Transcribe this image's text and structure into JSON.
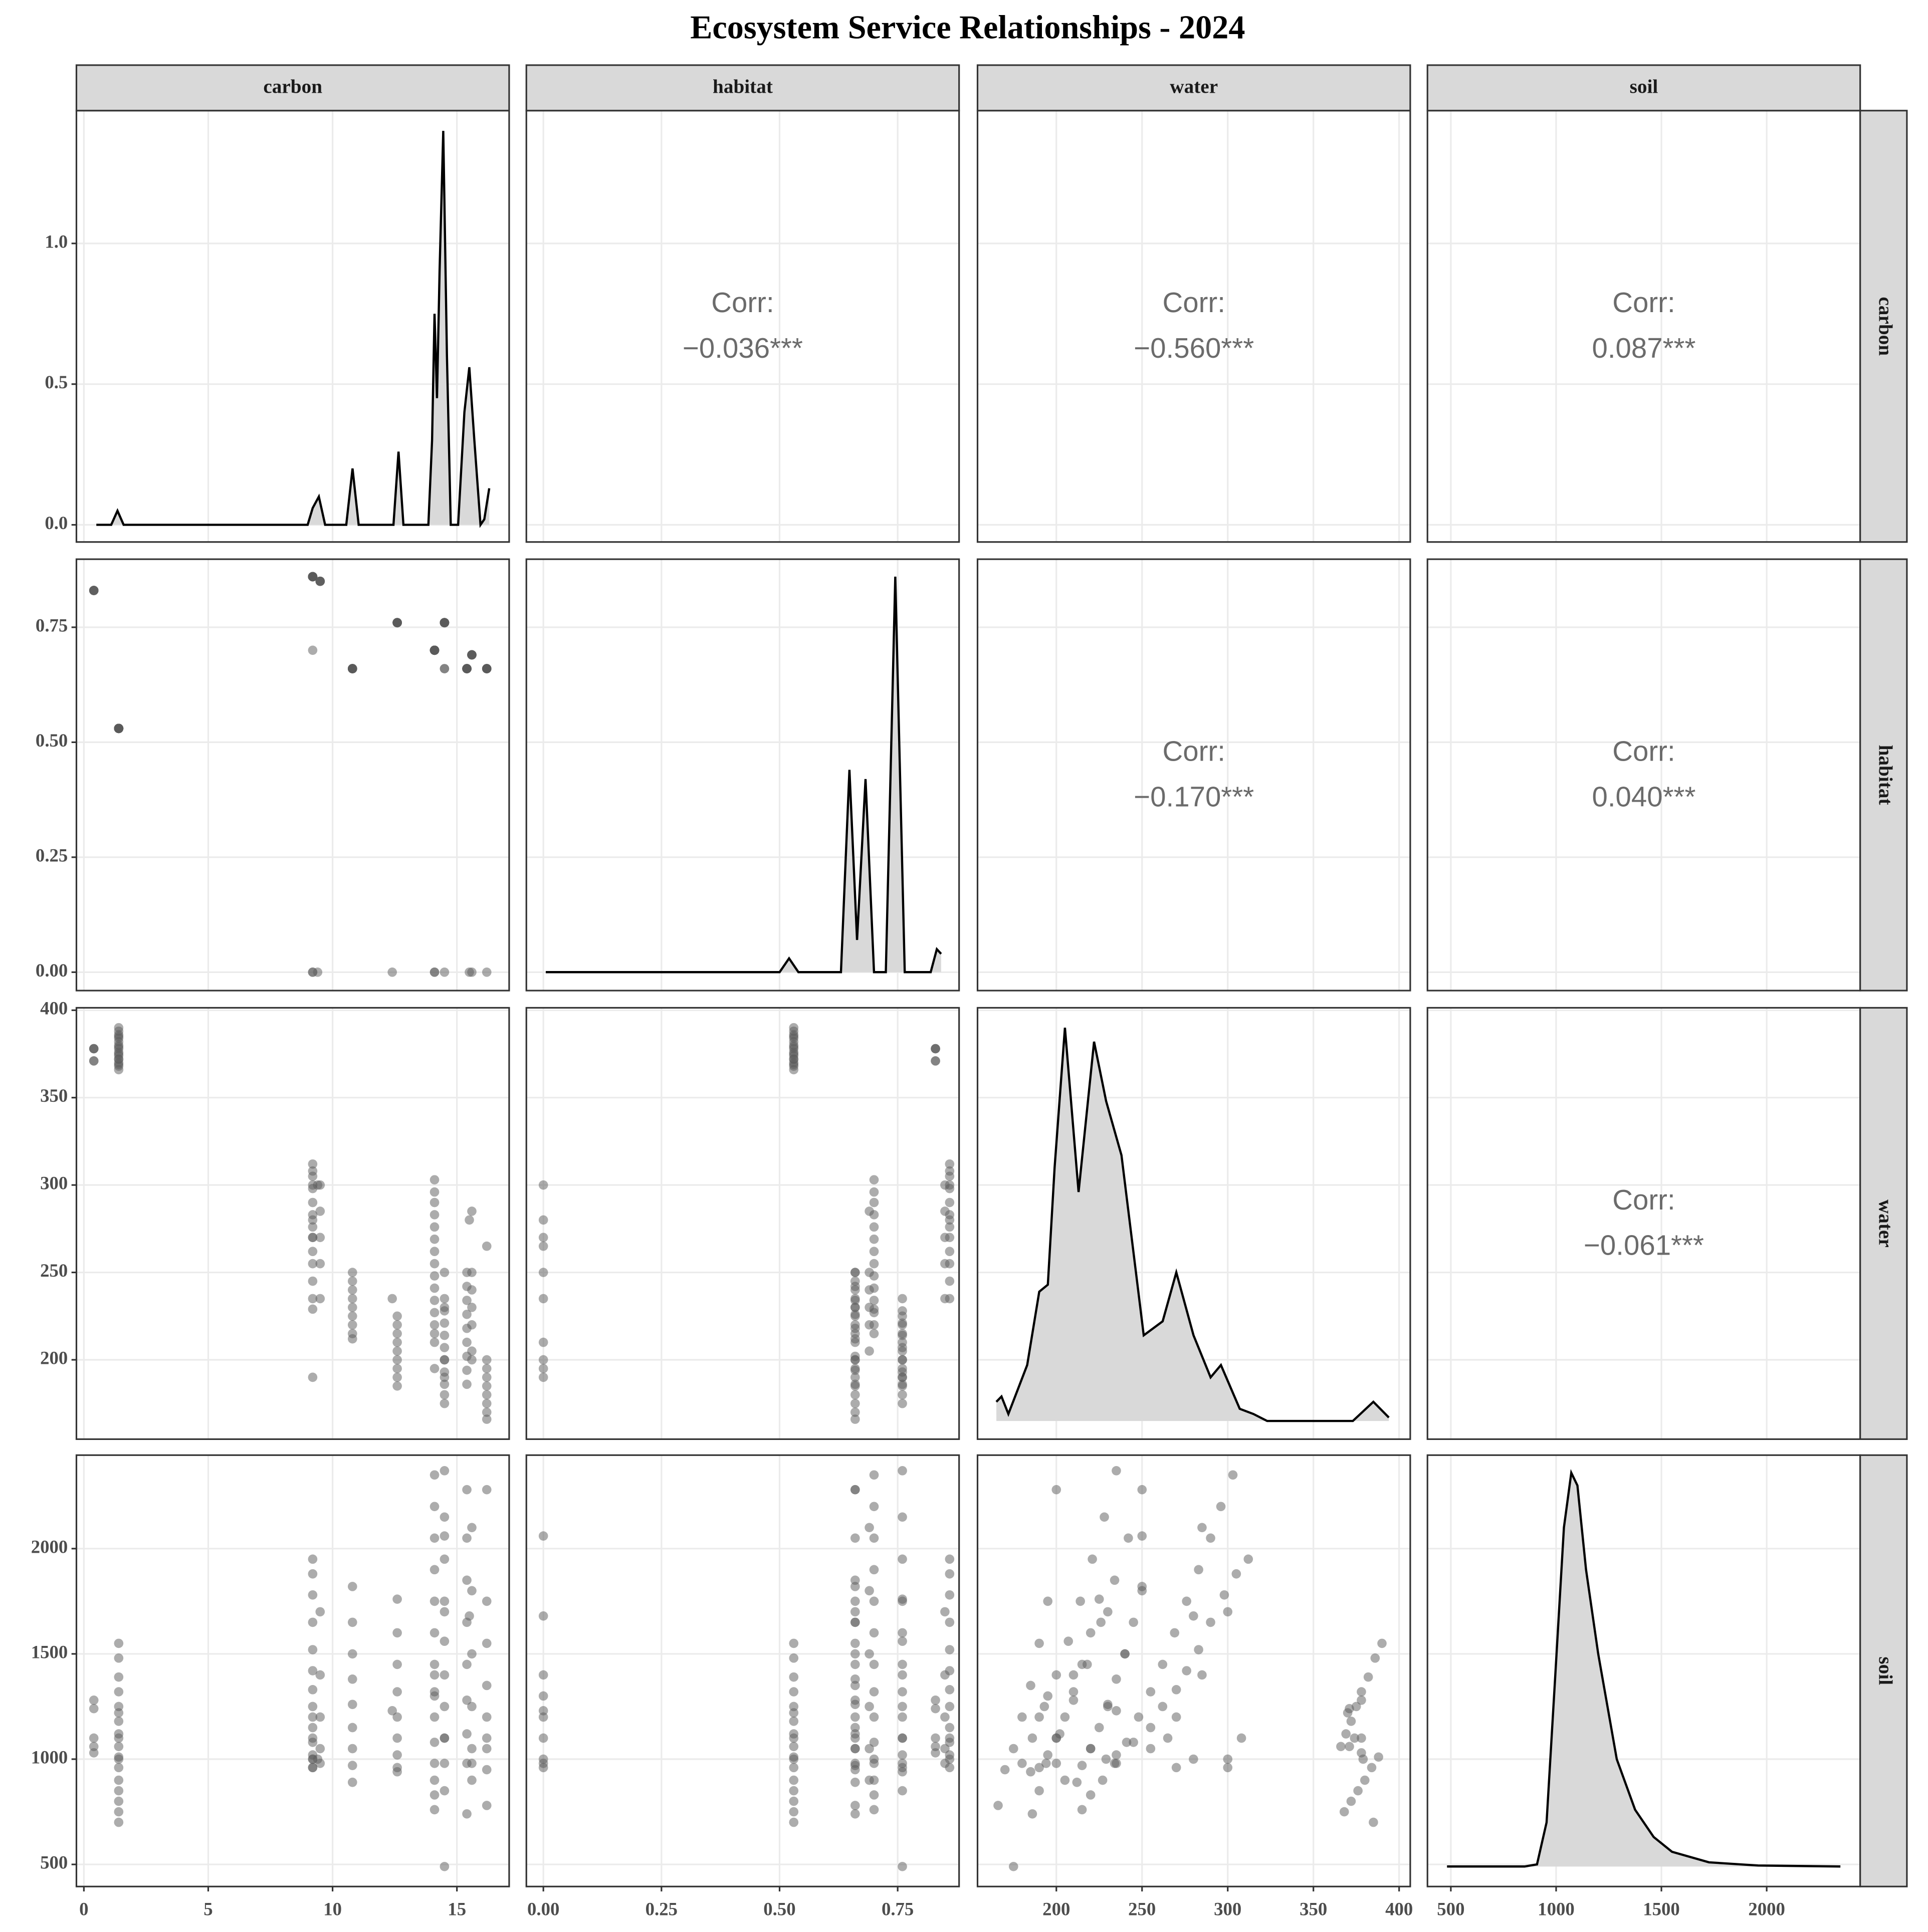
{
  "chart_data": {
    "type": "pairs",
    "title": "Ecosystem Service Relationships - 2024",
    "grid": true,
    "point_color": "#595959",
    "density_fill": "#d9d9d9",
    "line_color": "#000000",
    "variables": [
      {
        "name": "carbon",
        "xlim": [
          -0.3,
          17.1
        ],
        "xticks": [
          0,
          5,
          10,
          15
        ],
        "ylim": [
          -0.061,
          1.472
        ],
        "yticks": [
          {
            "value": 0,
            "label": "0.0"
          },
          0.5,
          {
            "value": 1,
            "label": "1.0"
          }
        ],
        "density": {
          "x": [
            0.5,
            1.1,
            1.35,
            1.6,
            9.0,
            9.2,
            9.45,
            9.7,
            10.55,
            10.8,
            11.05,
            12.45,
            12.65,
            12.85,
            13.85,
            14.0,
            14.1,
            14.2,
            14.3,
            14.45,
            14.6,
            14.75,
            15.05,
            15.3,
            15.5,
            15.7,
            15.95,
            16.1,
            16.3
          ],
          "y": [
            0,
            0,
            0.05,
            0,
            0,
            0.06,
            0.1,
            0,
            0,
            0.2,
            0,
            0,
            0.26,
            0,
            0,
            0.3,
            0.75,
            0.45,
            0.9,
            1.4,
            0.6,
            0,
            0,
            0.4,
            0.56,
            0.3,
            0,
            0.02,
            0.13
          ]
        }
      },
      {
        "name": "habitat",
        "xlim": [
          -0.036,
          0.88
        ],
        "xticks": [
          {
            "value": 0,
            "label": "0.00"
          },
          {
            "value": 0.25,
            "label": "0.25"
          },
          {
            "value": 0.5,
            "label": "0.50"
          },
          {
            "value": 0.75,
            "label": "0.75"
          }
        ],
        "ylim": [
          -0.04,
          0.898
        ],
        "yticks": [
          {
            "value": 0,
            "label": "0.00"
          },
          {
            "value": 0.25,
            "label": "0.25"
          },
          {
            "value": 0.5,
            "label": "0.50"
          },
          {
            "value": 0.75,
            "label": "0.75"
          }
        ],
        "density": {
          "x": [
            0.005,
            0.5,
            0.52,
            0.54,
            0.63,
            0.648,
            0.664,
            0.682,
            0.7,
            0.725,
            0.745,
            0.765,
            0.82,
            0.833,
            0.842
          ],
          "y": [
            0,
            0,
            0.03,
            0,
            0,
            0.44,
            0.07,
            0.42,
            0,
            0,
            0.86,
            0,
            0,
            0.05,
            0.04
          ]
        }
      },
      {
        "name": "water",
        "xlim": [
          154,
          406.5
        ],
        "xticks": [
          200,
          250,
          300,
          350,
          400
        ],
        "ylim": [
          154.6,
          401.4
        ],
        "yticks": [
          200,
          250,
          300,
          350,
          400
        ],
        "density": {
          "x": [
            165,
            168,
            172,
            183,
            190,
            195,
            199,
            205,
            213,
            222,
            229,
            238,
            251,
            262,
            270,
            280,
            290,
            296,
            307,
            315,
            323,
            373,
            385,
            394
          ],
          "y": [
            176,
            179,
            169,
            197,
            239,
            243,
            310,
            390,
            296,
            382,
            348,
            317,
            214,
            222,
            250,
            214,
            190,
            197,
            172,
            169,
            165,
            165,
            176,
            167
          ]
        }
      },
      {
        "name": "soil",
        "xlim": [
          389,
          2444
        ],
        "xticks": [
          500,
          1000,
          1500,
          2000
        ],
        "ylim": [
          395,
          2444
        ],
        "yticks": [
          500,
          1000,
          1500,
          2000
        ],
        "density": {
          "x": [
            482,
            850,
            909,
            955,
            996,
            1037,
            1072,
            1101,
            1142,
            1200,
            1288,
            1375,
            1463,
            1550,
            1726,
            1959,
            2350
          ],
          "y": [
            490,
            490,
            500,
            700,
            1400,
            2100,
            2360,
            2300,
            1900,
            1500,
            1000,
            760,
            630,
            560,
            510,
            495,
            490
          ]
        }
      }
    ],
    "correlations": [
      {
        "x": "habitat",
        "y": "carbon",
        "label": "Corr:",
        "value": -0.036,
        "value_label": "−0.036***"
      },
      {
        "x": "water",
        "y": "carbon",
        "label": "Corr:",
        "value": -0.56,
        "value_label": "−0.560***"
      },
      {
        "x": "soil",
        "y": "carbon",
        "label": "Corr:",
        "value": 0.087,
        "value_label": "0.087***"
      },
      {
        "x": "water",
        "y": "habitat",
        "label": "Corr:",
        "value": -0.17,
        "value_label": "−0.170***"
      },
      {
        "x": "soil",
        "y": "habitat",
        "label": "Corr:",
        "value": 0.04,
        "value_label": "0.040***"
      },
      {
        "x": "soil",
        "y": "water",
        "label": "Corr:",
        "value": -0.061,
        "value_label": "−0.061***"
      }
    ],
    "observations": [
      [
        0.4,
        0.83,
        378,
        1280
      ],
      [
        0.4,
        0.83,
        371,
        1240
      ],
      [
        0.4,
        0.83,
        378,
        1100
      ],
      [
        0.4,
        0.83,
        371,
        1060
      ],
      [
        0.4,
        0.83,
        378,
        1030
      ],
      [
        1.4,
        0.53,
        390,
        1550
      ],
      [
        1.4,
        0.53,
        386,
        1480
      ],
      [
        1.4,
        0.53,
        382,
        1390
      ],
      [
        1.4,
        0.53,
        378,
        1320
      ],
      [
        1.4,
        0.53,
        375,
        1250
      ],
      [
        1.4,
        0.53,
        372,
        1180
      ],
      [
        1.4,
        0.53,
        369,
        1120
      ],
      [
        1.4,
        0.53,
        366,
        1060
      ],
      [
        1.4,
        0.53,
        388,
        1010
      ],
      [
        1.4,
        0.53,
        384,
        960
      ],
      [
        1.4,
        0.53,
        380,
        900
      ],
      [
        1.4,
        0.53,
        376,
        850
      ],
      [
        1.4,
        0.53,
        372,
        800
      ],
      [
        1.4,
        0.53,
        368,
        750
      ],
      [
        1.4,
        0.53,
        385,
        700
      ],
      [
        1.4,
        0.53,
        379,
        1000
      ],
      [
        1.4,
        0.53,
        374,
        1100
      ],
      [
        1.4,
        0.53,
        370,
        1220
      ],
      [
        9.2,
        0.86,
        312,
        1950
      ],
      [
        9.2,
        0.86,
        305,
        1880
      ],
      [
        9.2,
        0.86,
        298,
        1780
      ],
      [
        9.2,
        0.86,
        290,
        1650
      ],
      [
        9.2,
        0.86,
        283,
        1520
      ],
      [
        9.2,
        0.86,
        276,
        1420
      ],
      [
        9.2,
        0.86,
        270,
        1330
      ],
      [
        9.2,
        0.86,
        262,
        1250
      ],
      [
        9.2,
        0.86,
        255,
        1150
      ],
      [
        9.2,
        0.86,
        245,
        1080
      ],
      [
        9.2,
        0.86,
        235,
        1020
      ],
      [
        9.2,
        0.86,
        300,
        960
      ],
      [
        9.2,
        0.86,
        280,
        1000
      ],
      [
        9.2,
        0.86,
        308,
        1100
      ],
      [
        9.5,
        0.85,
        300,
        1700
      ],
      [
        9.5,
        0.85,
        285,
        1400
      ],
      [
        9.5,
        0.85,
        270,
        1200
      ],
      [
        9.5,
        0.85,
        255,
        1050
      ],
      [
        9.5,
        0.85,
        235,
        980
      ],
      [
        9.2,
        0.7,
        229,
        1000
      ],
      [
        9.2,
        0,
        190,
        1200
      ],
      [
        9.4,
        0,
        300,
        1000
      ],
      [
        12.4,
        0,
        235,
        1230
      ],
      [
        14.1,
        0,
        210,
        1400
      ],
      [
        14.5,
        0,
        250,
        2060
      ],
      [
        15.5,
        0,
        280,
        1680
      ],
      [
        15.6,
        0,
        200,
        980
      ],
      [
        16.2,
        0,
        265,
        1100
      ],
      [
        14.1,
        0,
        195,
        1300
      ],
      [
        9.2,
        0,
        270,
        960
      ],
      [
        10.8,
        0.66,
        250,
        1820
      ],
      [
        10.8,
        0.66,
        245,
        1650
      ],
      [
        10.8,
        0.66,
        240,
        1500
      ],
      [
        10.8,
        0.66,
        235,
        1380
      ],
      [
        10.8,
        0.66,
        230,
        1260
      ],
      [
        10.8,
        0.66,
        225,
        1150
      ],
      [
        10.8,
        0.66,
        220,
        1050
      ],
      [
        10.8,
        0.66,
        215,
        970
      ],
      [
        10.8,
        0.66,
        212,
        890
      ],
      [
        12.6,
        0.76,
        225,
        1760
      ],
      [
        12.6,
        0.76,
        220,
        1600
      ],
      [
        12.6,
        0.76,
        215,
        1450
      ],
      [
        12.6,
        0.76,
        210,
        1320
      ],
      [
        12.6,
        0.76,
        205,
        1200
      ],
      [
        12.6,
        0.76,
        200,
        1100
      ],
      [
        12.6,
        0.76,
        195,
        1020
      ],
      [
        12.6,
        0.76,
        190,
        960
      ],
      [
        12.6,
        0.76,
        185,
        940
      ],
      [
        14.1,
        0.7,
        303,
        2350
      ],
      [
        14.1,
        0.7,
        296,
        2200
      ],
      [
        14.1,
        0.7,
        290,
        2050
      ],
      [
        14.1,
        0.7,
        283,
        1900
      ],
      [
        14.1,
        0.7,
        276,
        1750
      ],
      [
        14.1,
        0.7,
        269,
        1600
      ],
      [
        14.1,
        0.7,
        262,
        1450
      ],
      [
        14.1,
        0.7,
        255,
        1320
      ],
      [
        14.1,
        0.7,
        248,
        1200
      ],
      [
        14.1,
        0.7,
        241,
        1080
      ],
      [
        14.1,
        0.7,
        234,
        980
      ],
      [
        14.1,
        0.7,
        227,
        900
      ],
      [
        14.1,
        0.7,
        220,
        830
      ],
      [
        14.1,
        0.7,
        215,
        760
      ],
      [
        14.5,
        0.76,
        235,
        2370
      ],
      [
        14.5,
        0.76,
        228,
        2150
      ],
      [
        14.5,
        0.76,
        221,
        1950
      ],
      [
        14.5,
        0.76,
        214,
        1750
      ],
      [
        14.5,
        0.76,
        207,
        1560
      ],
      [
        14.5,
        0.76,
        200,
        1400
      ],
      [
        14.5,
        0.76,
        193,
        1250
      ],
      [
        14.5,
        0.76,
        186,
        1100
      ],
      [
        14.5,
        0.76,
        180,
        980
      ],
      [
        14.5,
        0.76,
        175,
        490
      ],
      [
        14.5,
        0.76,
        190,
        850
      ],
      [
        14.5,
        0.66,
        230,
        1700
      ],
      [
        14.5,
        0.66,
        200,
        1100
      ],
      [
        15.4,
        0.66,
        250,
        2280
      ],
      [
        15.4,
        0.66,
        242,
        2050
      ],
      [
        15.4,
        0.66,
        234,
        1850
      ],
      [
        15.4,
        0.66,
        226,
        1650
      ],
      [
        15.4,
        0.66,
        218,
        1450
      ],
      [
        15.4,
        0.66,
        210,
        1280
      ],
      [
        15.4,
        0.66,
        202,
        1120
      ],
      [
        15.4,
        0.66,
        194,
        980
      ],
      [
        15.4,
        0.66,
        186,
        740
      ],
      [
        15.6,
        0.69,
        285,
        2100
      ],
      [
        15.6,
        0.69,
        250,
        1800
      ],
      [
        15.6,
        0.69,
        240,
        1500
      ],
      [
        15.6,
        0.69,
        230,
        1250
      ],
      [
        15.6,
        0.69,
        220,
        1050
      ],
      [
        15.6,
        0.69,
        205,
        900
      ],
      [
        16.2,
        0.66,
        200,
        2280
      ],
      [
        16.2,
        0.66,
        195,
        1750
      ],
      [
        16.2,
        0.66,
        190,
        1550
      ],
      [
        16.2,
        0.66,
        185,
        1350
      ],
      [
        16.2,
        0.66,
        180,
        1200
      ],
      [
        16.2,
        0.66,
        175,
        1050
      ],
      [
        16.2,
        0.66,
        170,
        950
      ],
      [
        16.2,
        0.66,
        166,
        780
      ]
    ]
  }
}
